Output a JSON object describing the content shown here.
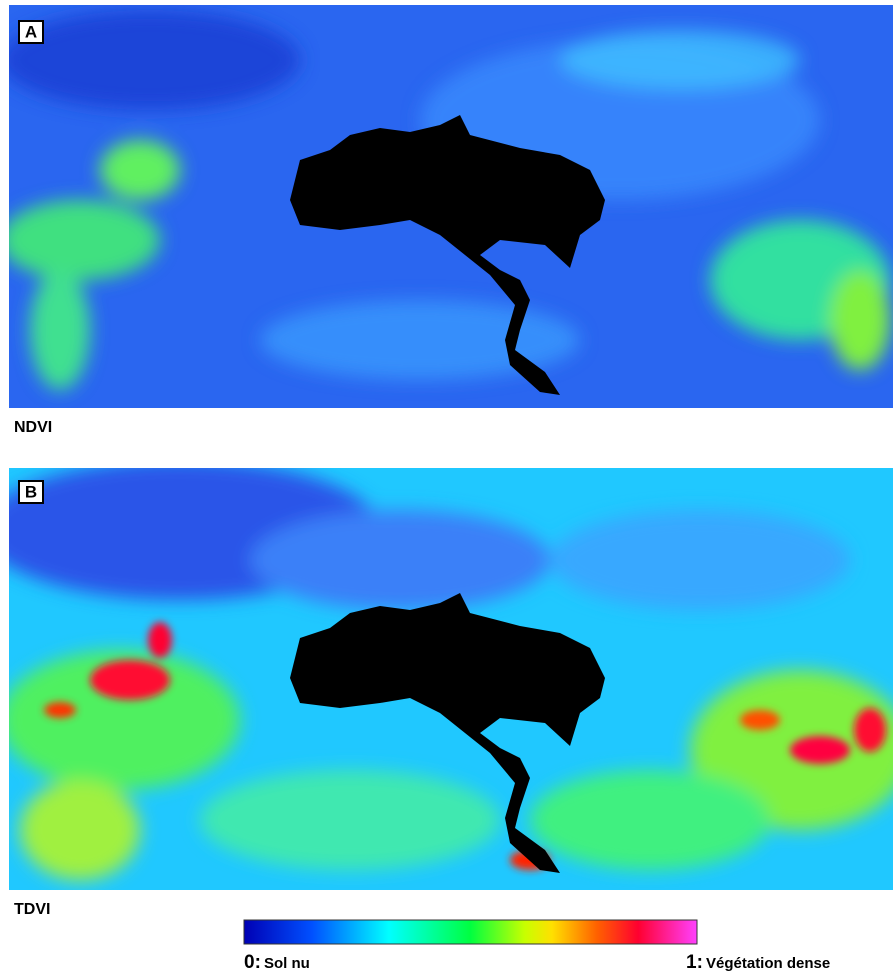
{
  "panels": [
    {
      "label": "A",
      "caption": "NDVI"
    },
    {
      "label": "B",
      "caption": "TDVI"
    }
  ],
  "legend": {
    "start": {
      "value": "0:",
      "text": "Sol nu"
    },
    "end": {
      "value": "1:",
      "text": "Végétation dense"
    }
  }
}
